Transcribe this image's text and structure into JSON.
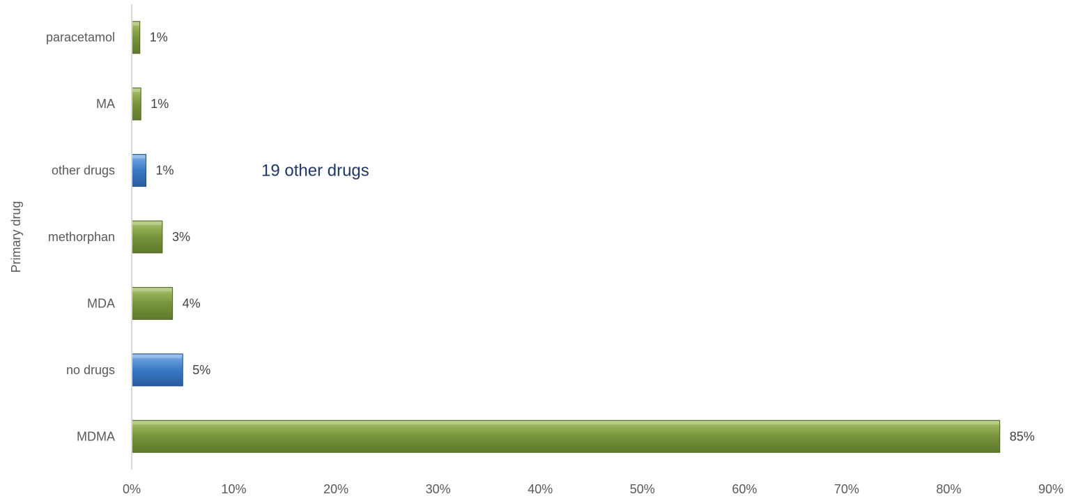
{
  "chart_data": {
    "type": "bar",
    "orientation": "horizontal",
    "ylabel": "Primary drug",
    "xlabel": "",
    "categories": [
      "MDMA",
      "no drugs",
      "MDA",
      "methorphan",
      "other drugs",
      "MA",
      "paracetamol"
    ],
    "values": [
      85,
      5,
      4,
      3,
      1.4,
      0.9,
      0.8
    ],
    "data_labels": [
      "85%",
      "5%",
      "4%",
      "3%",
      "1%",
      "1%",
      "1%"
    ],
    "bar_colors": [
      "#77933c",
      "#3a78c4",
      "#77933c",
      "#77933c",
      "#3a78c4",
      "#77933c",
      "#77933c"
    ],
    "xlim": [
      0,
      90
    ],
    "x_ticks": [
      0,
      10,
      20,
      30,
      40,
      50,
      60,
      70,
      80,
      90
    ],
    "x_tick_labels": [
      "0%",
      "10%",
      "20%",
      "30%",
      "40%",
      "50%",
      "60%",
      "70%",
      "80%",
      "90%"
    ],
    "grid": false,
    "legend": "none",
    "annotation": {
      "text": "19 other drugs",
      "near_category": "other drugs"
    }
  }
}
